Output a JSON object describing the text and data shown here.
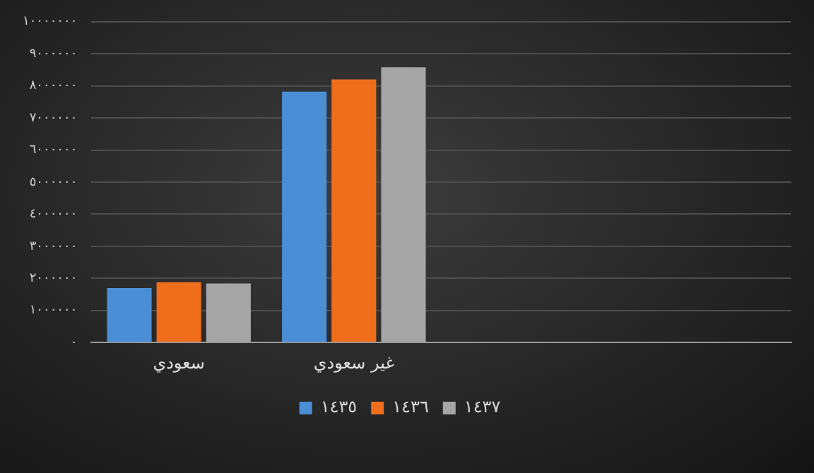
{
  "chart_data": {
    "type": "bar",
    "categories": [
      "سعودي",
      "غير سعودي",
      null,
      null
    ],
    "series": [
      {
        "name": "١٤٣٥",
        "color": "#4a8fd6",
        "values": [
          1700000,
          7820000,
          null,
          null
        ]
      },
      {
        "name": "١٤٣٦",
        "color": "#ef6e1c",
        "values": [
          1880000,
          8200000,
          null,
          null
        ]
      },
      {
        "name": "١٤٣٧",
        "color": "#a5a5a5",
        "values": [
          1840000,
          8580000,
          null,
          null
        ]
      }
    ],
    "ylim": [
      0,
      10000000
    ],
    "yticks": [
      {
        "value": 0,
        "label": "٠"
      },
      {
        "value": 1000000,
        "label": "١٠٠٠٠٠٠"
      },
      {
        "value": 2000000,
        "label": "٢٠٠٠٠٠٠"
      },
      {
        "value": 3000000,
        "label": "٣٠٠٠٠٠٠"
      },
      {
        "value": 4000000,
        "label": "٤٠٠٠٠٠٠"
      },
      {
        "value": 5000000,
        "label": "٥٠٠٠٠٠٠"
      },
      {
        "value": 6000000,
        "label": "٦٠٠٠٠٠٠"
      },
      {
        "value": 7000000,
        "label": "٧٠٠٠٠٠٠"
      },
      {
        "value": 8000000,
        "label": "٨٠٠٠٠٠٠"
      },
      {
        "value": 9000000,
        "label": "٩٠٠٠٠٠٠"
      },
      {
        "value": 10000000,
        "label": "١٠٠٠٠٠٠٠"
      }
    ],
    "grid": "y",
    "legend": "bottom"
  }
}
